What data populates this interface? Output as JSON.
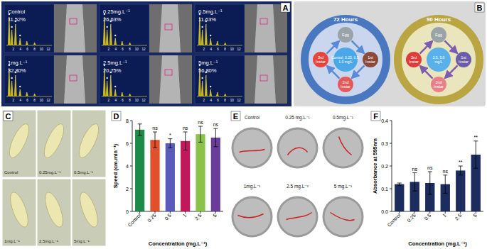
{
  "labels": [
    "A",
    "B",
    "C",
    "D",
    "E",
    "F"
  ],
  "eds": {
    "ticks": [
      2,
      4,
      6,
      8,
      10,
      12
    ],
    "cells": [
      {
        "label": "Control",
        "percent": "11.52%"
      },
      {
        "label": "0.25mg.L⁻¹",
        "percent": "26.63%"
      },
      {
        "label": "0.5mg.L⁻¹",
        "percent": "11.63%"
      },
      {
        "label": "1mg.L⁻¹",
        "percent": "32.80%"
      },
      {
        "label": "2.5mg.L⁻¹",
        "percent": "20.75%"
      },
      {
        "label": "5mg.L⁻¹",
        "percent": "56.80%"
      }
    ]
  },
  "lifecycle": [
    {
      "title": "72 Hours",
      "center": "Control, 0.25, 0.5, 1.0 mg/L",
      "stages": [
        "Egg",
        "1st Instar",
        "2nd Instar",
        "3rd Instar"
      ]
    },
    {
      "title": "90 Hours",
      "center": "2.5, 5.0 mg/L",
      "stages": [
        "Egg",
        "1st Instar",
        "2nd Instar",
        "3rd Instar"
      ]
    }
  ],
  "larvae": [
    "Control",
    "0.25mg.L⁻¹",
    "0.5mg.L⁻¹",
    "1mg.L⁻¹",
    "2.5mg.L⁻¹",
    "5mg.L⁻¹"
  ],
  "tracks": [
    "Control",
    "0.25 mg.L⁻¹",
    "0.5mg.L⁻¹",
    "1mg.L⁻¹",
    "2.5 mg.L⁻¹",
    "5 mg.L⁻¹"
  ],
  "chart_data": [
    {
      "type": "bar",
      "y_label": "Speed (cm.min⁻¹)",
      "x_label": "Concentration (mg.L⁻¹)",
      "categories": [
        "Control",
        "0.25",
        "0.5",
        "1",
        "2.5",
        "5"
      ],
      "values": [
        7.2,
        6.3,
        6.0,
        6.2,
        6.8,
        6.5
      ],
      "errors": [
        0.5,
        0.7,
        0.4,
        0.8,
        0.7,
        0.8
      ],
      "significance": [
        null,
        "ns",
        "*",
        "ns",
        "ns",
        "ns"
      ],
      "colors": [
        "#1e8a4a",
        "#e0502a",
        "#5a5ab8",
        "#c2185b",
        "#8bc34a",
        "#6a3d9a"
      ],
      "ylim": [
        0,
        8
      ],
      "yticks": [
        0,
        2,
        4,
        6,
        8
      ]
    },
    {
      "type": "bar",
      "y_label": "Absorbance at 595nm",
      "x_label": "Concentration (mg.L⁻¹)",
      "categories": [
        "Control",
        "0.25",
        "0.5",
        "1",
        "2.5",
        "5"
      ],
      "values": [
        0.12,
        0.13,
        0.125,
        0.12,
        0.18,
        0.25
      ],
      "errors": [
        0.005,
        0.04,
        0.05,
        0.04,
        0.02,
        0.06
      ],
      "significance": [
        null,
        "ns",
        "ns",
        "ns",
        "**",
        "**"
      ],
      "color": "#1c2c5c",
      "ylim": [
        0,
        0.4
      ],
      "yticks": [
        {
          "value": 0,
          "label": "0.0"
        },
        {
          "value": 0.1,
          "label": "0.1"
        },
        {
          "value": 0.2,
          "label": "0.2"
        },
        {
          "value": 0.3,
          "label": "0.3"
        },
        {
          "value": 0.4,
          "label": "0.4"
        }
      ]
    }
  ]
}
